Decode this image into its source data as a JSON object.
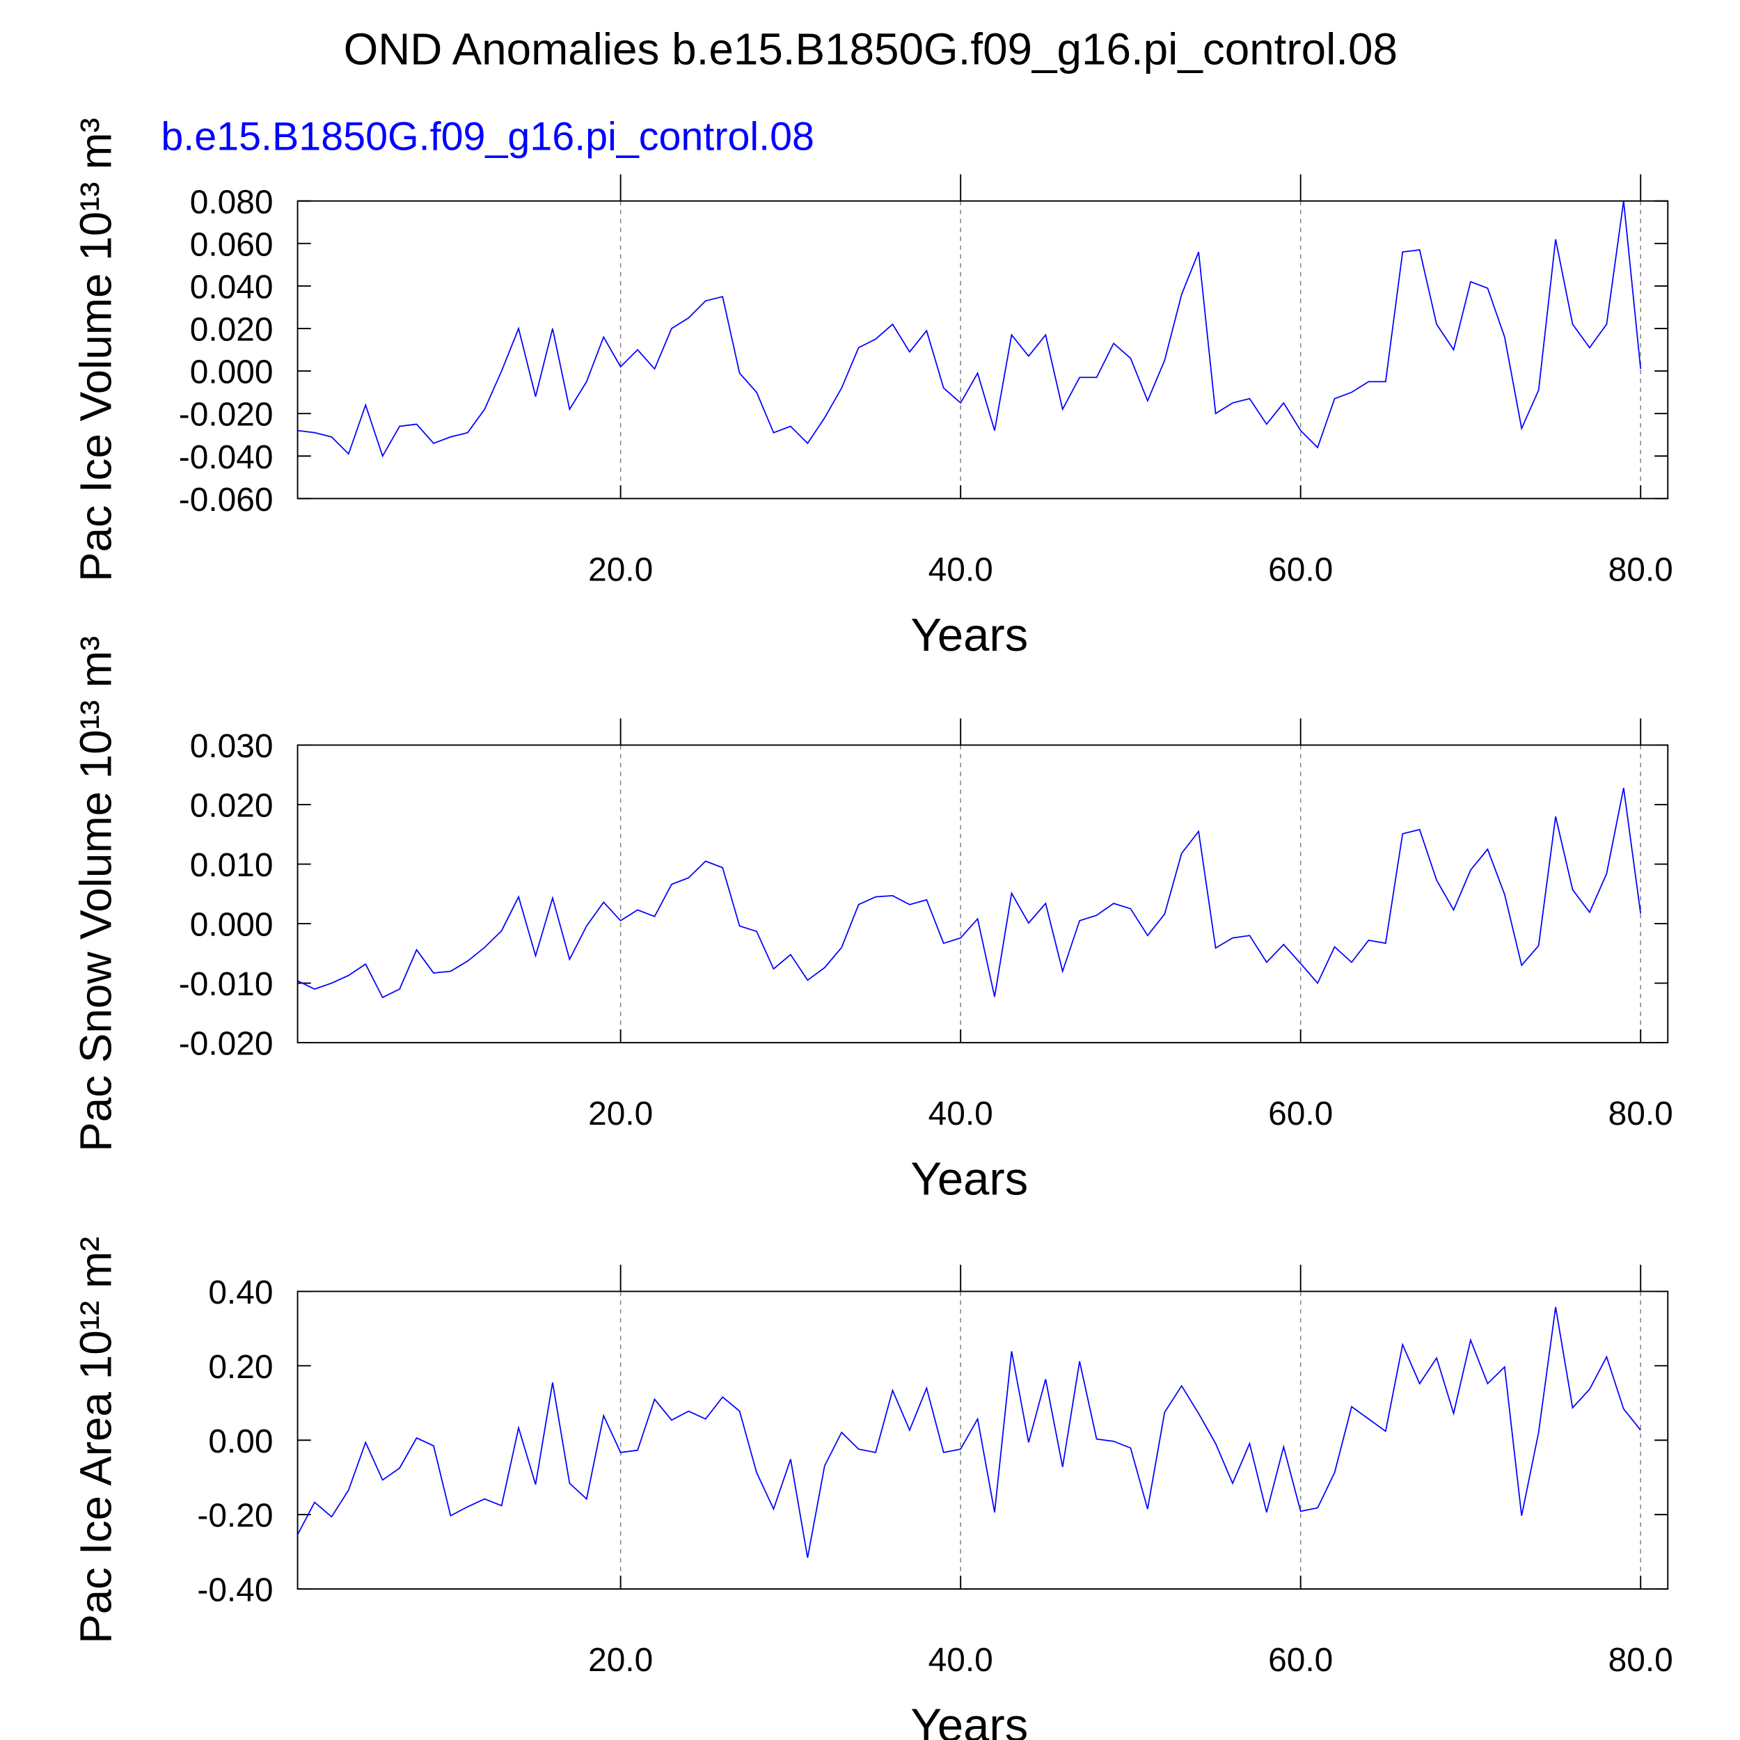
{
  "chart_data": [
    {
      "type": "line",
      "title": "OND Anomalies b.e15.B1850G.f09_g16.pi_control.08",
      "subtitle": "b.e15.B1850G.f09_g16.pi_control.08",
      "subtitle_color": "#0000ff",
      "xlabel": "Years",
      "ylabel": "Pac Ice Volume 10¹³ m³",
      "x": [
        1,
        2,
        3,
        4,
        5,
        6,
        7,
        8,
        9,
        10,
        11,
        12,
        13,
        14,
        15,
        16,
        17,
        18,
        19,
        20,
        21,
        22,
        23,
        24,
        25,
        26,
        27,
        28,
        29,
        30,
        31,
        32,
        33,
        34,
        35,
        36,
        37,
        38,
        39,
        40,
        41,
        42,
        43,
        44,
        45,
        46,
        47,
        48,
        49,
        50,
        51,
        52,
        53,
        54,
        55,
        56,
        57,
        58,
        59,
        60,
        61,
        62,
        63,
        64,
        65,
        66,
        67,
        68,
        69,
        70,
        71,
        72,
        73,
        74,
        75,
        76,
        77,
        78,
        79,
        80
      ],
      "series": [
        {
          "color": "#0000ff",
          "values": [
            -0.028,
            -0.029,
            -0.031,
            -0.039,
            -0.016,
            -0.04,
            -0.026,
            -0.025,
            -0.034,
            -0.031,
            -0.029,
            -0.018,
            0.0,
            0.02,
            -0.012,
            0.02,
            -0.018,
            -0.005,
            0.016,
            0.002,
            0.01,
            0.001,
            0.02,
            0.025,
            0.033,
            0.035,
            -0.001,
            -0.01,
            -0.029,
            -0.026,
            -0.034,
            -0.022,
            -0.008,
            0.011,
            0.015,
            0.022,
            0.009,
            0.019,
            -0.008,
            -0.015,
            -0.001,
            -0.028,
            0.017,
            0.007,
            0.017,
            -0.018,
            -0.003,
            -0.003,
            0.013,
            0.006,
            -0.014,
            0.005,
            0.036,
            0.056,
            -0.02,
            -0.015,
            -0.013,
            -0.025,
            -0.015,
            -0.028,
            -0.036,
            -0.013,
            -0.01,
            -0.005,
            -0.005,
            0.056,
            0.057,
            0.022,
            0.01,
            0.042,
            0.039,
            0.016,
            -0.027,
            -0.009,
            0.062,
            0.022,
            0.011,
            0.022,
            0.08,
            0.001
          ]
        }
      ],
      "xlim": [
        1,
        81.6
      ],
      "xticks": [
        {
          "value": 20,
          "label": "20.0"
        },
        {
          "value": 40,
          "label": "40.0"
        },
        {
          "value": 60,
          "label": "60.0"
        },
        {
          "value": 80,
          "label": "80.0"
        }
      ],
      "ylim": [
        -0.06,
        0.08
      ],
      "yticks": [
        {
          "value": -0.06,
          "label": "-0.060"
        },
        {
          "value": -0.04,
          "label": "-0.040"
        },
        {
          "value": -0.02,
          "label": "-0.020"
        },
        {
          "value": 0,
          "label": "0.000"
        },
        {
          "value": 0.02,
          "label": "0.020"
        },
        {
          "value": 0.04,
          "label": "0.040"
        },
        {
          "value": 0.06,
          "label": "0.060"
        },
        {
          "value": 0.08,
          "label": "0.080"
        }
      ],
      "grid": "x"
    },
    {
      "type": "line",
      "xlabel": "Years",
      "ylabel": "Pac Snow Volume 10¹³ m³",
      "x": [
        1,
        2,
        3,
        4,
        5,
        6,
        7,
        8,
        9,
        10,
        11,
        12,
        13,
        14,
        15,
        16,
        17,
        18,
        19,
        20,
        21,
        22,
        23,
        24,
        25,
        26,
        27,
        28,
        29,
        30,
        31,
        32,
        33,
        34,
        35,
        36,
        37,
        38,
        39,
        40,
        41,
        42,
        43,
        44,
        45,
        46,
        47,
        48,
        49,
        50,
        51,
        52,
        53,
        54,
        55,
        56,
        57,
        58,
        59,
        60,
        61,
        62,
        63,
        64,
        65,
        66,
        67,
        68,
        69,
        70,
        71,
        72,
        73,
        74,
        75,
        76,
        77,
        78,
        79,
        80
      ],
      "series": [
        {
          "color": "#0000ff",
          "values": [
            -0.0096,
            -0.011,
            -0.01,
            -0.0087,
            -0.0068,
            -0.0124,
            -0.011,
            -0.0044,
            -0.0083,
            -0.008,
            -0.0063,
            -0.004,
            -0.0012,
            0.0045,
            -0.0054,
            0.0043,
            -0.006,
            -0.0004,
            0.0036,
            0.0005,
            0.0023,
            0.0012,
            0.0066,
            0.0077,
            0.0105,
            0.0094,
            -0.0004,
            -0.0013,
            -0.0076,
            -0.0052,
            -0.0095,
            -0.0074,
            -0.004,
            0.0032,
            0.0045,
            0.0047,
            0.0032,
            0.004,
            -0.0033,
            -0.0024,
            0.0008,
            -0.0123,
            0.0051,
            0.0001,
            0.0034,
            -0.008,
            0.0005,
            0.0014,
            0.0034,
            0.0025,
            -0.002,
            0.0016,
            0.0118,
            0.0155,
            -0.0041,
            -0.0024,
            -0.002,
            -0.0065,
            -0.0035,
            -0.0067,
            -0.01,
            -0.0039,
            -0.0065,
            -0.0028,
            -0.0033,
            0.0151,
            0.0158,
            0.0073,
            0.0023,
            0.009,
            0.0125,
            0.0049,
            -0.007,
            -0.0037,
            0.018,
            0.0057,
            0.0019,
            0.0084,
            0.0228,
            0.0017
          ]
        }
      ],
      "xlim": [
        1,
        81.6
      ],
      "xticks": [
        {
          "value": 20,
          "label": "20.0"
        },
        {
          "value": 40,
          "label": "40.0"
        },
        {
          "value": 60,
          "label": "60.0"
        },
        {
          "value": 80,
          "label": "80.0"
        }
      ],
      "ylim": [
        -0.02,
        0.03
      ],
      "yticks": [
        {
          "value": -0.02,
          "label": "-0.020"
        },
        {
          "value": -0.01,
          "label": "-0.010"
        },
        {
          "value": 0,
          "label": "0.000"
        },
        {
          "value": 0.01,
          "label": "0.010"
        },
        {
          "value": 0.02,
          "label": "0.020"
        },
        {
          "value": 0.03,
          "label": "0.030"
        }
      ],
      "grid": "x"
    },
    {
      "type": "line",
      "xlabel": "Years",
      "ylabel": "Pac Ice Area 10¹² m²",
      "x": [
        1,
        2,
        3,
        4,
        5,
        6,
        7,
        8,
        9,
        10,
        11,
        12,
        13,
        14,
        15,
        16,
        17,
        18,
        19,
        20,
        21,
        22,
        23,
        24,
        25,
        26,
        27,
        28,
        29,
        30,
        31,
        32,
        33,
        34,
        35,
        36,
        37,
        38,
        39,
        40,
        41,
        42,
        43,
        44,
        45,
        46,
        47,
        48,
        49,
        50,
        51,
        52,
        53,
        54,
        55,
        56,
        57,
        58,
        59,
        60,
        61,
        62,
        63,
        64,
        65,
        66,
        67,
        68,
        69,
        70,
        71,
        72,
        73,
        74,
        75,
        76,
        77,
        78,
        79,
        80
      ],
      "series": [
        {
          "color": "#0000ff",
          "values": [
            -0.254,
            -0.167,
            -0.206,
            -0.134,
            -0.006,
            -0.107,
            -0.075,
            0.006,
            -0.015,
            -0.203,
            -0.179,
            -0.158,
            -0.176,
            0.033,
            -0.119,
            0.155,
            -0.116,
            -0.158,
            0.066,
            -0.033,
            -0.027,
            0.11,
            0.054,
            0.078,
            0.057,
            0.116,
            0.078,
            -0.087,
            -0.185,
            -0.051,
            -0.316,
            -0.069,
            0.021,
            -0.024,
            -0.033,
            0.134,
            0.027,
            0.14,
            -0.033,
            -0.024,
            0.057,
            -0.194,
            0.239,
            -0.006,
            0.164,
            -0.072,
            0.212,
            0.003,
            -0.003,
            -0.021,
            -0.185,
            0.075,
            0.146,
            0.072,
            -0.009,
            -0.116,
            -0.009,
            -0.194,
            -0.018,
            -0.191,
            -0.182,
            -0.087,
            0.09,
            0.057,
            0.024,
            0.257,
            0.152,
            0.221,
            0.072,
            0.269,
            0.152,
            0.197,
            -0.203,
            0.021,
            0.358,
            0.087,
            0.137,
            0.224,
            0.084,
            0.027
          ]
        }
      ],
      "xlim": [
        1,
        81.6
      ],
      "xticks": [
        {
          "value": 20,
          "label": "20.0"
        },
        {
          "value": 40,
          "label": "40.0"
        },
        {
          "value": 60,
          "label": "60.0"
        },
        {
          "value": 80,
          "label": "80.0"
        }
      ],
      "ylim": [
        -0.4,
        0.4
      ],
      "yticks": [
        {
          "value": -0.4,
          "label": "-0.40"
        },
        {
          "value": -0.2,
          "label": "-0.20"
        },
        {
          "value": 0,
          "label": "0.00"
        },
        {
          "value": 0.2,
          "label": "0.20"
        },
        {
          "value": 0.4,
          "label": "0.40"
        }
      ],
      "grid": "x"
    }
  ]
}
